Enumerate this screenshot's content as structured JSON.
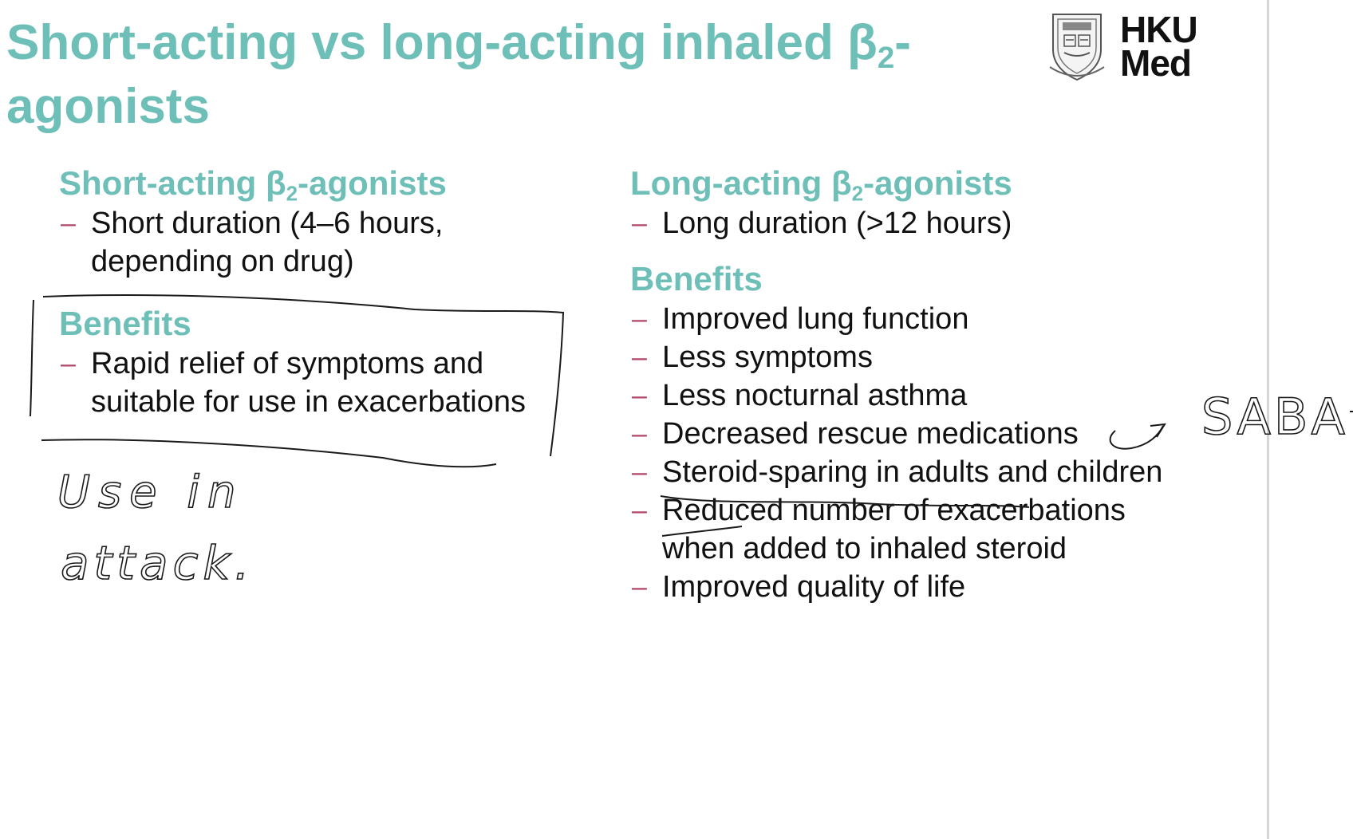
{
  "slide": {
    "title_main": "Short-acting vs long-acting inhaled β",
    "title_sub": "2",
    "title_tail": "-agonists"
  },
  "logo": {
    "line1": "HKU",
    "line2": "Med"
  },
  "left": {
    "heading_pre": "Short-acting β",
    "heading_sub": "2",
    "heading_post": "-agonists",
    "bullets": [
      "Short duration (4–6 hours, depending on drug)"
    ],
    "benefits_heading": "Benefits",
    "benefits": [
      "Rapid relief of symptoms and suitable for use in exacerbations"
    ]
  },
  "right": {
    "heading_pre": "Long-acting β",
    "heading_sub": "2",
    "heading_post": "-agonists",
    "bullets": [
      "Long duration (>12 hours)"
    ],
    "benefits_heading": "Benefits",
    "benefits": [
      "Improved lung function",
      "Less symptoms",
      "Less nocturnal asthma",
      "Decreased rescue medications",
      "Steroid-sparing in adults and children",
      "Reduced number of exacerbations when added to inhaled steroid",
      "Improved quality of life"
    ]
  },
  "bullet_dash": "–",
  "handwriting": {
    "note_left_line1": "Use in",
    "note_left_line2": "attack.",
    "note_right": "SABA"
  },
  "colors": {
    "accent": "#6dbfb7",
    "dash": "#b0466a",
    "text": "#111111"
  }
}
